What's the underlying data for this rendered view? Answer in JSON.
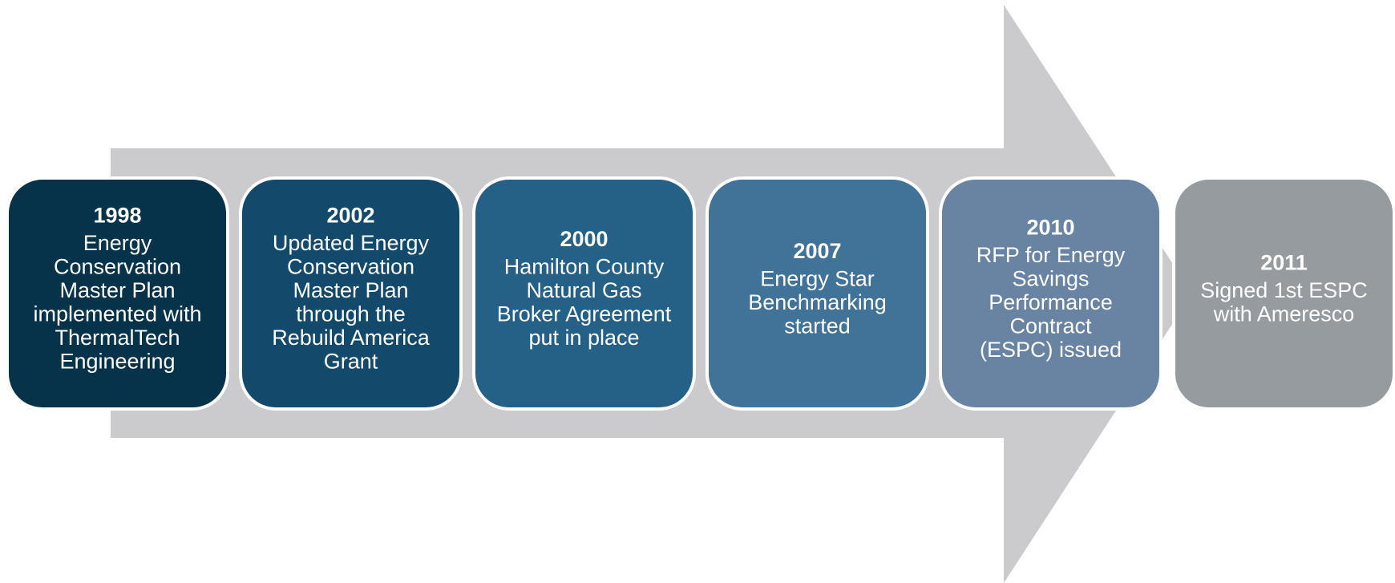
{
  "nodes": [
    {
      "year": "1998",
      "lines": [
        "Energy",
        "Conservation",
        "Master Plan",
        "implemented with",
        "ThermalTech",
        "Engineering"
      ],
      "color": "#06334a"
    },
    {
      "year": "2002",
      "lines": [
        "Updated Energy",
        "Conservation",
        "Master Plan",
        "through the",
        "Rebuild America",
        "Grant"
      ],
      "color": "#134a6c"
    },
    {
      "year": "2000",
      "lines": [
        "Hamilton County",
        "Natural Gas",
        "Broker Agreement",
        "put in place"
      ],
      "color": "#256087"
    },
    {
      "year": "2007",
      "lines": [
        "Energy Star",
        "Benchmarking",
        "started"
      ],
      "color": "#417399"
    },
    {
      "year": "2010",
      "lines": [
        "RFP for Energy",
        "Savings",
        "Performance",
        "Contract",
        "(ESPC) issued"
      ],
      "color": "#6884a2"
    },
    {
      "year": "2011",
      "lines": [
        "Signed 1st ESPC",
        "with Ameresco"
      ],
      "color": "#969ba0"
    }
  ]
}
